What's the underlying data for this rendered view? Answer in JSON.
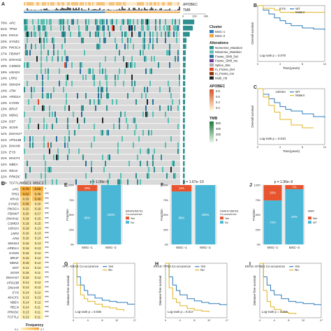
{
  "colors": {
    "msc1": "#2b7bba",
    "msc2": "#f1a43b",
    "wt": "#2b7bba",
    "mut": "#e6c12c",
    "no": "#4bb7d6",
    "yes": "#e8542e",
    "apobec": "#f4c27a",
    "tmb": "#3bb56c",
    "heat_lo": "#fff2b0",
    "heat_hi": "#f2a23a",
    "km_blue": "#2b7bba",
    "km_gold": "#e0b422"
  },
  "panelA": {
    "top_labels": [
      "APOBEC",
      "TMB"
    ],
    "tmb_ticks": [
      "0",
      "200",
      "400"
    ],
    "genes": [
      {
        "pct": "70%",
        "name": "APC"
      },
      {
        "pct": "61%",
        "name": "TP53"
      },
      {
        "pct": "42%",
        "name": "KRAS"
      },
      {
        "pct": "22%",
        "name": "SYNE1"
      },
      {
        "pct": "20%",
        "name": "PIK3CA"
      },
      {
        "pct": "17%",
        "name": "FBXW7"
      },
      {
        "pct": "17%",
        "name": "DNAH11"
      },
      {
        "pct": "16%",
        "name": "CSMD3"
      },
      {
        "pct": "15%",
        "name": "USH2A"
      },
      {
        "pct": "14%",
        "name": "LRP2"
      },
      {
        "pct": "14%",
        "name": "SMAD4"
      },
      {
        "pct": "14%",
        "name": "ATM"
      },
      {
        "pct": "14%",
        "name": "ARID1A"
      },
      {
        "pct": "13%",
        "name": "HYDIN"
      },
      {
        "pct": "13%",
        "name": "BRAF"
      },
      {
        "pct": "12%",
        "name": "MDN1"
      },
      {
        "pct": "12%",
        "name": "DST"
      },
      {
        "pct": "12%",
        "name": "SOX9"
      },
      {
        "pct": "11%",
        "name": "DNAH17"
      },
      {
        "pct": "11%",
        "name": "VPS13B"
      },
      {
        "pct": "11%",
        "name": "DNAH8"
      },
      {
        "pct": "11%",
        "name": "EYS"
      },
      {
        "pct": "11%",
        "name": "MACF1"
      },
      {
        "pct": "11%",
        "name": "NBEA"
      },
      {
        "pct": "11%",
        "name": "RELN"
      },
      {
        "pct": "11%",
        "name": "PRKDC"
      },
      {
        "pct": "11%",
        "name": "TCF7L2"
      }
    ],
    "freq": [
      70,
      61,
      42,
      22,
      20,
      17,
      17,
      16,
      15,
      14,
      14,
      14,
      14,
      13,
      13,
      12,
      12,
      12,
      11,
      11,
      11,
      11,
      11,
      11,
      11,
      11,
      11
    ],
    "legend": {
      "cluster_title": "Cluster",
      "clusters": [
        "MSC-1",
        "MSC-2"
      ],
      "alt_title": "Alterations",
      "alterations": [
        {
          "name": "Nonsense_Mutation",
          "color": "#2f8f8f"
        },
        {
          "name": "Missense_Mutation",
          "color": "#58c0b3"
        },
        {
          "name": "Frame_Shift_Del",
          "color": "#2a6f9f"
        },
        {
          "name": "Frame_Shift_Ins",
          "color": "#6a3d9a"
        },
        {
          "name": "Splice_Site",
          "color": "#b0b0b0"
        },
        {
          "name": "In_Frame_Del",
          "color": "#e04a2a"
        },
        {
          "name": "In_Frame_Ins",
          "color": "#8c2d04"
        },
        {
          "name": "Multi_Hit",
          "color": "#222222"
        }
      ],
      "apobec_title": "APOBEC",
      "apobec_ticks": [
        "0.8",
        "0.6",
        "0.4",
        "0.2"
      ],
      "tmb_title": "TMB",
      "tmb_ticks": [
        "600",
        "400",
        "200",
        "0"
      ]
    }
  },
  "panelD": {
    "col_labels": [
      "MSC1",
      "MSC2"
    ],
    "rows": [
      {
        "gene": "APC",
        "v1": "0.70",
        "v2": "0.66",
        "sig": "*"
      },
      {
        "gene": "TP53",
        "v1": "0.62",
        "v2": "0.45",
        "sig": "***"
      },
      {
        "gene": "KRAS",
        "v1": "0.33",
        "v2": "0.49",
        "sig": "***"
      },
      {
        "gene": "SYNE1",
        "v1": "0.39",
        "v2": "0.20",
        "sig": "***"
      },
      {
        "gene": "PIK3CA",
        "v1": "0.22",
        "v2": "0.19",
        "sig": "***"
      },
      {
        "gene": "FBXW7",
        "v1": "0.20",
        "v2": "0.17",
        "sig": "***"
      },
      {
        "gene": "DNAH11",
        "v1": "0.19",
        "v2": "0.15",
        "sig": "***"
      },
      {
        "gene": "CSMD3",
        "v1": "0.19",
        "v2": "0.15",
        "sig": "***"
      },
      {
        "gene": "USH2A",
        "v1": "0.19",
        "v2": "0.13",
        "sig": "***"
      },
      {
        "gene": "LRP2",
        "v1": "0.16",
        "v2": "0.13",
        "sig": "***"
      },
      {
        "gene": "ATM",
        "v1": "0.16",
        "v2": "0.13",
        "sig": "***"
      },
      {
        "gene": "SMAD4",
        "v1": "0.16",
        "v2": "0.13",
        "sig": "***"
      },
      {
        "gene": "ARID1A",
        "v1": "0.16",
        "v2": "0.13",
        "sig": "***"
      },
      {
        "gene": "HYDIN",
        "v1": "0.16",
        "v2": "0.12",
        "sig": "***"
      },
      {
        "gene": "BRAF",
        "v1": "0.16",
        "v2": "0.12",
        "sig": "***"
      },
      {
        "gene": "MDN1",
        "v1": "0.19",
        "v2": "0.12",
        "sig": "***"
      },
      {
        "gene": "DST",
        "v1": "0.14",
        "v2": "0.12",
        "sig": "***"
      },
      {
        "gene": "SOX9",
        "v1": "0.15",
        "v2": "0.11",
        "sig": "***"
      },
      {
        "gene": "DNAH17",
        "v1": "0.16",
        "v2": "0.12",
        "sig": "***"
      },
      {
        "gene": "VPS13B",
        "v1": "0.14",
        "v2": "0.12",
        "sig": "***"
      },
      {
        "gene": "DNAH8",
        "v1": "0.14",
        "v2": "0.12",
        "sig": "***"
      },
      {
        "gene": "EYS",
        "v1": "0.14",
        "v2": "0.12",
        "sig": "***"
      },
      {
        "gene": "MACF1",
        "v1": "0.13",
        "v2": "0.13",
        "sig": "***"
      },
      {
        "gene": "NBEA",
        "v1": "0.14",
        "v2": "0.12",
        "sig": "***"
      },
      {
        "gene": "RELN",
        "v1": "0.14",
        "v2": "0.11",
        "sig": "***"
      },
      {
        "gene": "PRKDC",
        "v1": "0.13",
        "v2": "0.11",
        "sig": "***"
      },
      {
        "gene": "TCF7L2",
        "v1": "0.13",
        "v2": "0.11",
        "sig": "***"
      }
    ],
    "legend_title": "Frequency",
    "legend_ticks": [
      "0.1",
      "0.7"
    ]
  },
  "km": [
    {
      "letter": "B",
      "title": "EYS",
      "ylabel": "Overall survival",
      "xlabel": "Time(years)",
      "pval": "Log-rank p = 0.079",
      "legend": [
        "WT",
        "Mutant"
      ],
      "xticks": [
        "0",
        "4",
        "8",
        "12"
      ],
      "yticks": [
        "0.00",
        "0.25",
        "0.50",
        "0.75",
        "1.00"
      ]
    },
    {
      "letter": "C",
      "title": "USH2A",
      "ylabel": "Overall survival",
      "xlabel": "Time(years)",
      "pval": "Log-rank p = 0.010",
      "legend": [
        "WT",
        "Mutant"
      ],
      "xticks": [
        "0",
        "4",
        "8",
        "12"
      ],
      "yticks": [
        "0.00",
        "0.25",
        "0.50",
        "0.75",
        "1.00"
      ]
    },
    {
      "letter": "G",
      "title": "APC−KRAS Co-occurence",
      "ylabel": "Disease-free survival",
      "xlabel": "",
      "pval": "Log-rank p = 0.035",
      "legend": [
        "Yes",
        "No"
      ],
      "xticks": [
        "0",
        "4",
        "8",
        "12",
        "17"
      ],
      "yticks": [
        "0.00",
        "0.25",
        "0.50",
        "0.75",
        "1.00"
      ]
    },
    {
      "letter": "H",
      "title": "KRAS−TP53 Co-occurence",
      "ylabel": "Disease-free survival",
      "xlabel": "",
      "pval": "Log-rank p = 0.017",
      "legend": [
        "Yes",
        "No"
      ],
      "xticks": [
        "0",
        "4",
        "8",
        "12",
        "17"
      ],
      "yticks": [
        "0.00",
        "0.25",
        "0.50",
        "0.75",
        "1.00"
      ]
    },
    {
      "letter": "I",
      "title": "KRAS−SYNE1 Co-occurence",
      "ylabel": "Disease-free survival",
      "xlabel": "",
      "pval": "Log-rank p = 0.006",
      "legend": [
        "Yes",
        "No"
      ],
      "xticks": [
        "0",
        "4",
        "8",
        "12",
        "17"
      ],
      "yticks": [
        "0.00",
        "0.25",
        "0.50",
        "0.75",
        "1.00"
      ]
    }
  ],
  "stack": [
    {
      "letter": "E",
      "pval": "p = 1.08e−9",
      "ylabel": "Fraction",
      "legend_title": "BRAF|HMCN1 Co-occurence",
      "legend": [
        "Yes",
        "No"
      ],
      "yticks": [
        "0%",
        "25%",
        "50%",
        "75%",
        "100%"
      ]
    },
    {
      "letter": "F",
      "pval": "p = 1.67e−10",
      "ylabel": "Fraction",
      "legend_title": "DNAH17|MDN1 Co-occurence",
      "legend": [
        "Yes",
        "No"
      ],
      "yticks": [
        "0%",
        "25%",
        "50%",
        "75%",
        "100%"
      ]
    },
    {
      "letter": "J",
      "pval": "p = 1.96e−9",
      "ylabel": "Fraction",
      "legend_title": "MMR",
      "legend": [
        "Mut",
        "WT"
      ],
      "yticks": [
        "0%",
        "25%",
        "50%",
        "75%",
        "100%"
      ]
    }
  ],
  "letters": {
    "A": "A",
    "D": "D"
  },
  "chart_data": [
    {
      "type": "bar",
      "panel": "A",
      "title": "",
      "categories": [
        "APC",
        "TP53",
        "KRAS",
        "SYNE1",
        "PIK3CA",
        "FBXW7",
        "DNAH11",
        "CSMD3",
        "USH2A",
        "LRP2",
        "SMAD4",
        "ATM",
        "ARID1A",
        "HYDIN",
        "BRAF",
        "MDN1",
        "DST",
        "SOX9",
        "DNAH17",
        "VPS13B",
        "DNAH8",
        "EYS",
        "MACF1",
        "NBEA",
        "RELN",
        "PRKDC",
        "TCF7L2"
      ],
      "values": [
        70,
        61,
        42,
        22,
        20,
        17,
        17,
        16,
        15,
        14,
        14,
        14,
        14,
        13,
        13,
        12,
        12,
        12,
        11,
        11,
        11,
        11,
        11,
        11,
        11,
        11,
        11
      ]
    },
    {
      "type": "bar",
      "panel": "E",
      "title": "p = 1.08e−9",
      "categories": [
        "MSC−1",
        "MSC−2"
      ],
      "series": [
        {
          "name": "Yes",
          "values": [
            10,
            0
          ]
        },
        {
          "name": "No",
          "values": [
            90,
            100
          ]
        }
      ],
      "ylabel": "Fraction",
      "ylim": [
        0,
        100
      ]
    },
    {
      "type": "bar",
      "panel": "F",
      "title": "p = 1.67e−10",
      "categories": [
        "MSC−1",
        "MSC−2"
      ],
      "series": [
        {
          "name": "Yes",
          "values": [
            11,
            0
          ]
        },
        {
          "name": "No",
          "values": [
            89,
            100
          ]
        }
      ],
      "ylabel": "Fraction",
      "ylim": [
        0,
        100
      ]
    },
    {
      "type": "bar",
      "panel": "J",
      "title": "p = 1.96e−9",
      "categories": [
        "MSC−1",
        "MSC−2"
      ],
      "series": [
        {
          "name": "Mut",
          "values": [
            26,
            7
          ]
        },
        {
          "name": "WT",
          "values": [
            74,
            93
          ]
        }
      ],
      "ylabel": "Fraction",
      "ylim": [
        0,
        100
      ]
    },
    {
      "type": "line",
      "panel": "B",
      "title": "EYS",
      "xlabel": "Time(years)",
      "ylabel": "Overall survival",
      "xlim": [
        0,
        12
      ],
      "ylim": [
        0,
        1
      ],
      "series": [
        {
          "name": "WT",
          "x": [
            0,
            1,
            2,
            3,
            4,
            5,
            6,
            8,
            10,
            12
          ],
          "y": [
            1,
            0.92,
            0.85,
            0.78,
            0.73,
            0.68,
            0.64,
            0.6,
            0.58,
            0.56
          ]
        },
        {
          "name": "Mutant",
          "x": [
            0,
            1,
            2,
            3,
            4,
            5,
            8,
            12
          ],
          "y": [
            1,
            0.95,
            0.95,
            0.92,
            0.88,
            0.88,
            0.88,
            0.88
          ]
        }
      ]
    },
    {
      "type": "line",
      "panel": "C",
      "title": "USH2A",
      "xlabel": "Time(years)",
      "ylabel": "Overall survival",
      "xlim": [
        0,
        12
      ],
      "ylim": [
        0,
        1
      ],
      "series": [
        {
          "name": "WT",
          "x": [
            0,
            1,
            2,
            3,
            4,
            5,
            6,
            8,
            10,
            12
          ],
          "y": [
            1,
            0.9,
            0.82,
            0.75,
            0.68,
            0.63,
            0.6,
            0.55,
            0.5,
            0.48
          ]
        },
        {
          "name": "Mutant",
          "x": [
            0,
            1,
            2,
            3,
            4,
            6,
            8,
            10
          ],
          "y": [
            1,
            0.85,
            0.7,
            0.58,
            0.45,
            0.35,
            0.3,
            0.3
          ]
        }
      ]
    },
    {
      "type": "line",
      "panel": "G",
      "title": "APC−KRAS Co-occurence",
      "ylabel": "Disease-free survival",
      "xlim": [
        0,
        17
      ],
      "ylim": [
        0,
        1
      ],
      "series": [
        {
          "name": "Yes",
          "x": [
            0,
            1,
            2,
            3,
            4,
            6,
            8,
            10,
            12,
            15,
            17
          ],
          "y": [
            1,
            0.75,
            0.6,
            0.5,
            0.42,
            0.36,
            0.32,
            0.3,
            0.28,
            0.25,
            0.25
          ]
        },
        {
          "name": "No",
          "x": [
            0,
            1,
            2,
            3,
            4,
            6,
            8,
            10,
            12,
            14
          ],
          "y": [
            1,
            0.6,
            0.42,
            0.35,
            0.3,
            0.25,
            0.2,
            0.18,
            0.15,
            0.12
          ]
        }
      ]
    },
    {
      "type": "line",
      "panel": "H",
      "title": "KRAS−TP53 Co-occurence",
      "ylabel": "Disease-free survival",
      "xlim": [
        0,
        17
      ],
      "ylim": [
        0,
        1
      ],
      "series": [
        {
          "name": "Yes",
          "x": [
            0,
            1,
            2,
            3,
            4,
            6,
            8,
            10,
            12,
            15,
            17
          ],
          "y": [
            1,
            0.75,
            0.6,
            0.5,
            0.42,
            0.35,
            0.31,
            0.28,
            0.26,
            0.24,
            0.24
          ]
        },
        {
          "name": "No",
          "x": [
            0,
            1,
            2,
            3,
            4,
            6,
            8,
            10,
            12
          ],
          "y": [
            1,
            0.55,
            0.35,
            0.28,
            0.22,
            0.17,
            0.14,
            0.12,
            0.1
          ]
        }
      ]
    },
    {
      "type": "line",
      "panel": "I",
      "title": "KRAS−SYNE1 Co-occurence",
      "ylabel": "Disease-free survival",
      "xlim": [
        0,
        17
      ],
      "ylim": [
        0,
        1
      ],
      "series": [
        {
          "name": "Yes",
          "x": [
            0,
            1,
            2,
            3,
            4,
            6,
            8,
            10,
            12,
            15,
            17
          ],
          "y": [
            1,
            0.75,
            0.6,
            0.5,
            0.42,
            0.35,
            0.3,
            0.28,
            0.26,
            0.24,
            0.24
          ]
        },
        {
          "name": "No",
          "x": [
            0,
            1,
            2,
            3,
            4,
            6,
            8,
            10
          ],
          "y": [
            1,
            0.5,
            0.3,
            0.2,
            0.15,
            0.1,
            0.08,
            0.06
          ]
        }
      ]
    }
  ]
}
